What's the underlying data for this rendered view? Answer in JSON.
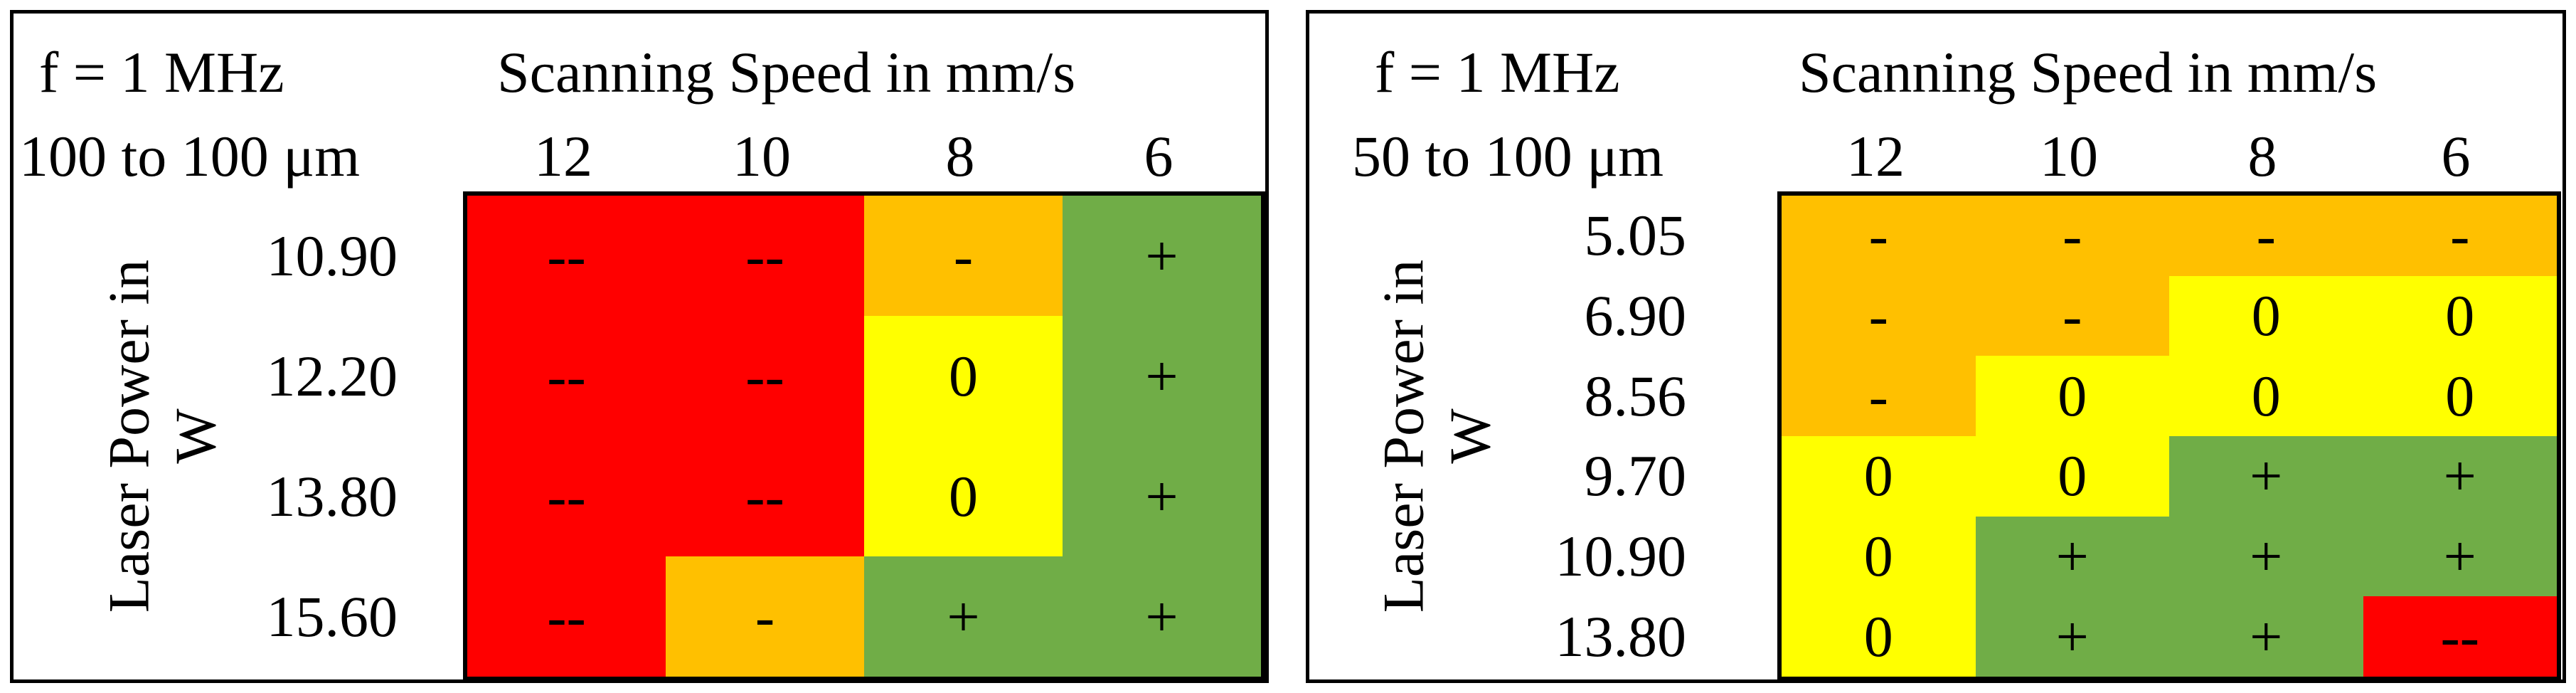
{
  "colors": {
    "--": "#ff0000",
    "-": "#ffc000",
    "0": "#ffff00",
    "+": "#70ad47"
  },
  "tables": [
    {
      "frequency": "f = 1 MHz",
      "range": "100 to 100 μm",
      "speed_title": "Scanning Speed in mm/s",
      "row_label": "Laser Power in W",
      "speeds": [
        "12",
        "10",
        "8",
        "6"
      ],
      "powers": [
        "10.90",
        "12.20",
        "13.80",
        "15.60"
      ],
      "cells": [
        [
          "--",
          "--",
          "-",
          "+"
        ],
        [
          "--",
          "--",
          "0",
          "+"
        ],
        [
          "--",
          "--",
          "0",
          "+"
        ],
        [
          "--",
          "-",
          "+",
          "+"
        ]
      ]
    },
    {
      "frequency": "f = 1 MHz",
      "range": "50 to 100 μm",
      "speed_title": "Scanning Speed in mm/s",
      "row_label": "Laser Power in W",
      "speeds": [
        "12",
        "10",
        "8",
        "6"
      ],
      "powers": [
        "5.05",
        "6.90",
        "8.56",
        "9.70",
        "10.90",
        "13.80"
      ],
      "cells": [
        [
          "-",
          "-",
          "-",
          "-"
        ],
        [
          "-",
          "-",
          "0",
          "0"
        ],
        [
          "-",
          "0",
          "0",
          "0"
        ],
        [
          "0",
          "0",
          "+",
          "+"
        ],
        [
          "0",
          "+",
          "+",
          "+"
        ],
        [
          "0",
          "+",
          "+",
          "--"
        ]
      ]
    }
  ]
}
